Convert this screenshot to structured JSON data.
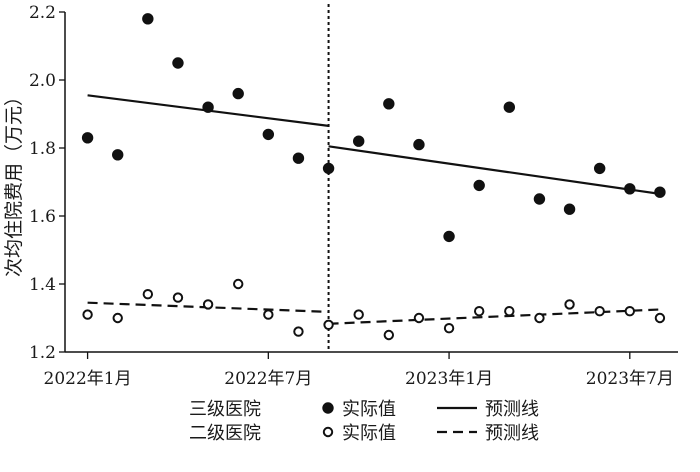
{
  "chart_data": {
    "type": "scatter",
    "title": "",
    "xlabel": "",
    "ylabel": "次均住院费用（万元）",
    "ylim": [
      1.2,
      2.2
    ],
    "yticks": [
      "1.2",
      "1.4",
      "1.6",
      "1.8",
      "2.0",
      "2.2"
    ],
    "yticks_values": [
      1.2,
      1.4,
      1.6,
      1.8,
      2.0,
      2.2
    ],
    "x_tick_labels": [
      "2022年1月",
      "2022年7月",
      "2023年1月",
      "2023年7月"
    ],
    "x_tick_months": [
      1,
      7,
      13,
      19
    ],
    "months": [
      1,
      2,
      3,
      4,
      5,
      6,
      7,
      8,
      9,
      10,
      11,
      12,
      13,
      14,
      15,
      16,
      17,
      18,
      19,
      20
    ],
    "intervention_month": 9,
    "grid": false,
    "legend_position": "bottom",
    "series": [
      {
        "name": "三级医院 实际值",
        "group_label": "三级医院",
        "kind_label": "实际值",
        "marker": "filled-circle",
        "values": [
          1.83,
          1.78,
          2.18,
          2.05,
          1.92,
          1.96,
          1.84,
          1.77,
          1.74,
          1.82,
          1.93,
          1.81,
          1.54,
          1.69,
          1.92,
          1.65,
          1.62,
          1.74,
          1.68,
          1.67
        ]
      },
      {
        "name": "二级医院 实际值",
        "group_label": "二级医院",
        "kind_label": "实际值",
        "marker": "open-circle",
        "values": [
          1.31,
          1.3,
          1.37,
          1.36,
          1.34,
          1.4,
          1.31,
          1.26,
          1.28,
          1.31,
          1.25,
          1.3,
          1.27,
          1.32,
          1.32,
          1.3,
          1.34,
          1.32,
          1.32,
          1.3
        ]
      },
      {
        "name": "三级医院 预测线",
        "kind_label": "预测线",
        "line_style": "solid",
        "segments": [
          {
            "x": [
              1,
              9
            ],
            "y": [
              1.955,
              1.865
            ]
          },
          {
            "x": [
              9,
              20
            ],
            "y": [
              1.805,
              1.665
            ]
          }
        ]
      },
      {
        "name": "二级医院 预测线",
        "kind_label": "预测线",
        "line_style": "dashed",
        "segments": [
          {
            "x": [
              1,
              9
            ],
            "y": [
              1.345,
              1.318
            ]
          },
          {
            "x": [
              9,
              20
            ],
            "y": [
              1.283,
              1.325
            ]
          }
        ]
      }
    ]
  }
}
